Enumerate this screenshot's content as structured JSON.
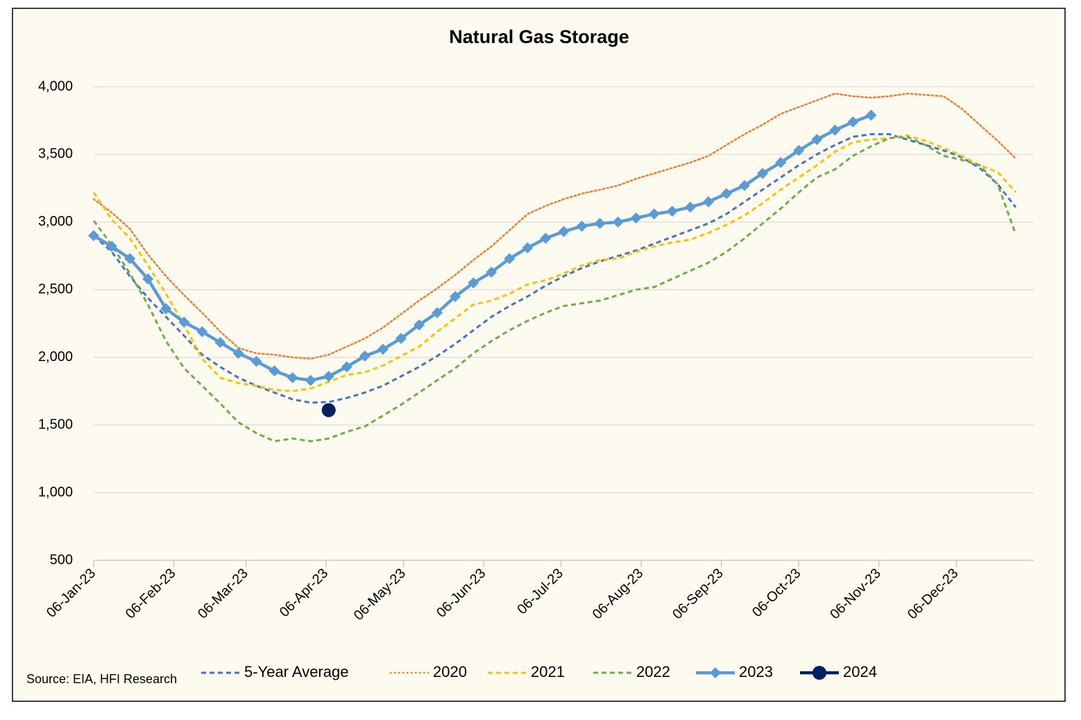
{
  "chart_data": {
    "type": "line",
    "title": "Natural Gas Storage",
    "annotation": "Source: EIA, HFI Research",
    "grid": true,
    "legend": "bottom",
    "x": [
      "2023-01-06",
      "2023-01-13",
      "2023-01-20",
      "2023-01-27",
      "2023-02-03",
      "2023-02-10",
      "2023-02-17",
      "2023-02-24",
      "2023-03-03",
      "2023-03-10",
      "2023-03-17",
      "2023-03-24",
      "2023-03-31",
      "2023-04-07",
      "2023-04-14",
      "2023-04-21",
      "2023-04-28",
      "2023-05-05",
      "2023-05-12",
      "2023-05-19",
      "2023-05-26",
      "2023-06-02",
      "2023-06-09",
      "2023-06-16",
      "2023-06-23",
      "2023-06-30",
      "2023-07-07",
      "2023-07-14",
      "2023-07-21",
      "2023-07-28",
      "2023-08-04",
      "2023-08-11",
      "2023-08-18",
      "2023-08-25",
      "2023-09-01",
      "2023-09-08",
      "2023-09-15",
      "2023-09-22",
      "2023-09-29",
      "2023-10-06",
      "2023-10-13",
      "2023-10-20",
      "2023-10-27",
      "2023-11-03",
      "2023-11-10",
      "2023-11-17",
      "2023-11-24",
      "2023-12-01",
      "2023-12-08",
      "2023-12-15",
      "2023-12-22",
      "2023-12-29"
    ],
    "xlim": [
      "2023-01-06",
      "2024-01-05"
    ],
    "xticks": [
      {
        "value": "2023-01-06",
        "label": "06-Jan-23"
      },
      {
        "value": "2023-02-06",
        "label": "06-Feb-23"
      },
      {
        "value": "2023-03-06",
        "label": "06-Mar-23"
      },
      {
        "value": "2023-04-06",
        "label": "06-Apr-23"
      },
      {
        "value": "2023-05-06",
        "label": "06-May-23"
      },
      {
        "value": "2023-06-06",
        "label": "06-Jun-23"
      },
      {
        "value": "2023-07-06",
        "label": "06-Jul-23"
      },
      {
        "value": "2023-08-06",
        "label": "06-Aug-23"
      },
      {
        "value": "2023-09-06",
        "label": "06-Sep-23"
      },
      {
        "value": "2023-10-06",
        "label": "06-Oct-23"
      },
      {
        "value": "2023-11-06",
        "label": "06-Nov-23"
      },
      {
        "value": "2023-12-06",
        "label": "06-Dec-23"
      }
    ],
    "ylim": [
      500,
      4000
    ],
    "yticks": [
      500,
      {
        "value": 1000,
        "label": "1,000"
      },
      {
        "value": 1500,
        "label": "1,500"
      },
      {
        "value": 2000,
        "label": "2,000"
      },
      {
        "value": 2500,
        "label": "2,500"
      },
      {
        "value": 3000,
        "label": "3,000"
      },
      {
        "value": 3500,
        "label": "3,500"
      },
      {
        "value": 4000,
        "label": "4,000"
      }
    ],
    "series": [
      {
        "name": "5-Year Average",
        "color": "#4472c4",
        "dash": "dashed",
        "marker": "none",
        "values": [
          2900,
          2780,
          2600,
          2440,
          2300,
          2160,
          2020,
          1930,
          1850,
          1790,
          1740,
          1690,
          1665,
          1670,
          1700,
          1740,
          1790,
          1860,
          1930,
          2010,
          2100,
          2200,
          2300,
          2380,
          2450,
          2530,
          2600,
          2660,
          2710,
          2750,
          2790,
          2840,
          2890,
          2940,
          2990,
          3060,
          3150,
          3240,
          3330,
          3420,
          3500,
          3570,
          3630,
          3650,
          3650,
          3610,
          3570,
          3530,
          3480,
          3400,
          3280,
          3110
        ]
      },
      {
        "name": "2020",
        "color": "#ed7d31",
        "dash": "dotted",
        "marker": "none",
        "values": [
          3170,
          3070,
          2950,
          2760,
          2600,
          2460,
          2330,
          2190,
          2070,
          2030,
          2020,
          2000,
          1990,
          2020,
          2080,
          2140,
          2220,
          2320,
          2420,
          2510,
          2610,
          2720,
          2820,
          2940,
          3060,
          3120,
          3170,
          3210,
          3240,
          3270,
          3320,
          3360,
          3400,
          3440,
          3490,
          3570,
          3650,
          3720,
          3800,
          3850,
          3900,
          3950,
          3930,
          3920,
          3930,
          3950,
          3940,
          3930,
          3840,
          3720,
          3600,
          3470
        ]
      },
      {
        "name": "2021",
        "color": "#ffc000",
        "dash": "dashed",
        "marker": "none",
        "values": [
          3220,
          3020,
          2880,
          2680,
          2470,
          2240,
          1990,
          1850,
          1810,
          1790,
          1760,
          1750,
          1770,
          1820,
          1870,
          1890,
          1940,
          2010,
          2080,
          2190,
          2290,
          2390,
          2420,
          2470,
          2540,
          2570,
          2620,
          2680,
          2720,
          2730,
          2780,
          2820,
          2850,
          2870,
          2920,
          2980,
          3050,
          3140,
          3240,
          3330,
          3420,
          3520,
          3590,
          3610,
          3620,
          3640,
          3600,
          3550,
          3490,
          3420,
          3370,
          3220
        ]
      },
      {
        "name": "2022",
        "color": "#70ad47",
        "dash": "dashed",
        "marker": "none",
        "values": [
          3010,
          2830,
          2620,
          2390,
          2120,
          1920,
          1790,
          1660,
          1520,
          1440,
          1380,
          1400,
          1380,
          1400,
          1450,
          1490,
          1570,
          1650,
          1740,
          1830,
          1920,
          2030,
          2120,
          2200,
          2270,
          2330,
          2380,
          2400,
          2420,
          2460,
          2500,
          2520,
          2580,
          2640,
          2700,
          2780,
          2880,
          2990,
          3100,
          3220,
          3330,
          3390,
          3490,
          3560,
          3620,
          3630,
          3570,
          3490,
          3460,
          3420,
          3280,
          2910
        ]
      },
      {
        "name": "2023",
        "color": "#5b9bd5",
        "dash": "solid",
        "marker": "diamond",
        "values": [
          2900,
          2820,
          2730,
          2580,
          2360,
          2260,
          2190,
          2110,
          2030,
          1970,
          1900,
          1850,
          1830,
          1860,
          1930,
          2010,
          2060,
          2140,
          2240,
          2330,
          2450,
          2550,
          2630,
          2730,
          2810,
          2880,
          2930,
          2970,
          2990,
          3000,
          3030,
          3060,
          3080,
          3110,
          3150,
          3210,
          3270,
          3360,
          3440,
          3530,
          3610,
          3680,
          3740,
          3790,
          null,
          null,
          null,
          null,
          null,
          null,
          null,
          null
        ]
      },
      {
        "name": "2024",
        "color": "#002060",
        "dash": "solid",
        "marker": "circle",
        "values": [
          null,
          null,
          null,
          null,
          null,
          null,
          null,
          null,
          null,
          null,
          null,
          null,
          null,
          1610,
          null,
          null,
          null,
          null,
          null,
          null,
          null,
          null,
          null,
          null,
          null,
          null,
          null,
          null,
          null,
          null,
          null,
          null,
          null,
          null,
          null,
          null,
          null,
          null,
          null,
          null,
          null,
          null,
          null,
          null,
          null,
          null,
          null,
          null,
          null,
          null,
          null,
          null
        ]
      }
    ]
  }
}
